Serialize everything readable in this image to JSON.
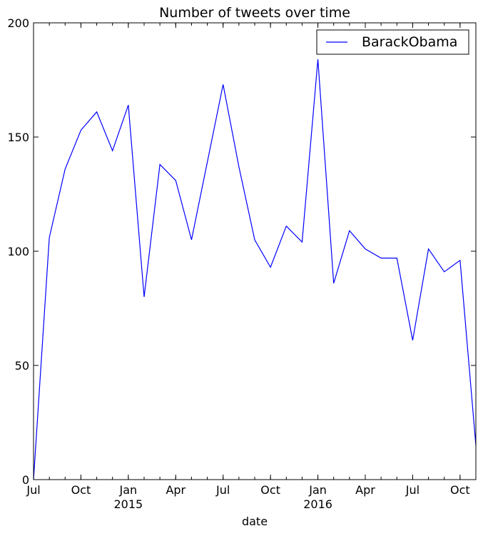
{
  "chart_data": {
    "type": "line",
    "title": "Number of tweets over time",
    "xlabel": "date",
    "ylabel": "",
    "ylim": [
      0,
      200
    ],
    "y_ticks": [
      0,
      50,
      100,
      150,
      200
    ],
    "x_range": [
      "2014-07",
      "2016-11"
    ],
    "x_ticks": [
      {
        "date": "2014-07",
        "label": "Jul",
        "sublabel": ""
      },
      {
        "date": "2014-10",
        "label": "Oct",
        "sublabel": ""
      },
      {
        "date": "2015-01",
        "label": "Jan",
        "sublabel": "2015"
      },
      {
        "date": "2015-04",
        "label": "Apr",
        "sublabel": ""
      },
      {
        "date": "2015-07",
        "label": "Jul",
        "sublabel": ""
      },
      {
        "date": "2015-10",
        "label": "Oct",
        "sublabel": ""
      },
      {
        "date": "2016-01",
        "label": "Jan",
        "sublabel": "2016"
      },
      {
        "date": "2016-04",
        "label": "Apr",
        "sublabel": ""
      },
      {
        "date": "2016-07",
        "label": "Jul",
        "sublabel": ""
      },
      {
        "date": "2016-10",
        "label": "Oct",
        "sublabel": ""
      }
    ],
    "grid": false,
    "legend_position": "top-right",
    "x": [
      "2014-07",
      "2014-08",
      "2014-09",
      "2014-10",
      "2014-11",
      "2014-12",
      "2015-01",
      "2015-02",
      "2015-03",
      "2015-04",
      "2015-05",
      "2015-06",
      "2015-07",
      "2015-08",
      "2015-09",
      "2015-10",
      "2015-11",
      "2015-12",
      "2016-01",
      "2016-02",
      "2016-03",
      "2016-04",
      "2016-05",
      "2016-06",
      "2016-07",
      "2016-08",
      "2016-09",
      "2016-10",
      "2016-11"
    ],
    "series": [
      {
        "name": "BarackObama",
        "color": "#0000ff",
        "values": [
          0,
          106,
          136,
          153,
          161,
          144,
          164,
          80,
          138,
          131,
          105,
          139,
          173,
          137,
          105,
          93,
          111,
          104,
          184,
          86,
          109,
          101,
          97,
          97,
          61,
          101,
          91,
          96,
          15
        ]
      }
    ]
  }
}
